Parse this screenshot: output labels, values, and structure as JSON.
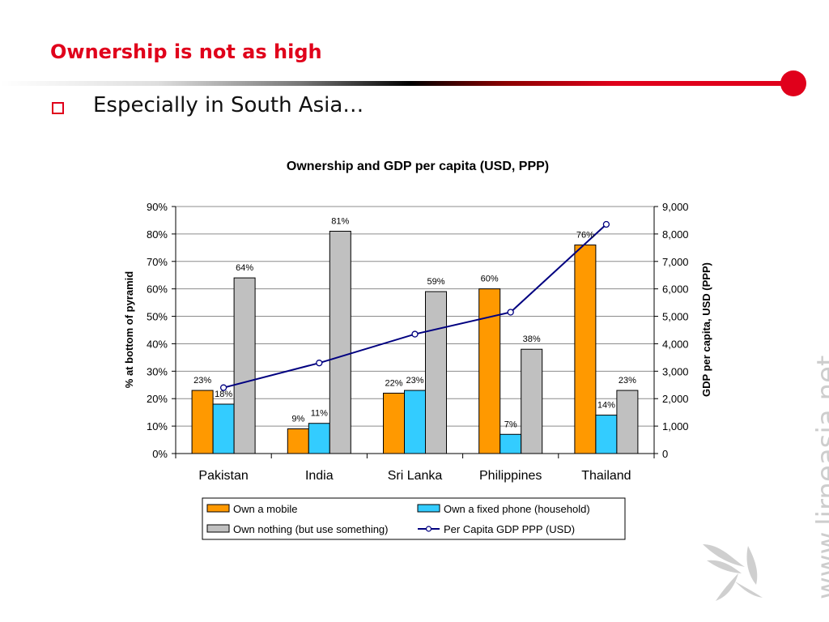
{
  "slide": {
    "title": "Ownership is not as high",
    "bullet": "Especially in South Asia…"
  },
  "watermark": "www.lirneasia.net",
  "colors": {
    "accent": "#e0001b",
    "mobile": "#ff9900",
    "fixed": "#33ccff",
    "nothing": "#c0c0c0",
    "gdp_line": "#000080"
  },
  "chart_data": {
    "type": "bar",
    "title": "Ownership and GDP per capita (USD, PPP)",
    "ylabel": "% at bottom of pyramid",
    "y2label": "GDP per capita, USD (PPP)",
    "ylim": [
      0,
      90
    ],
    "y2lim": [
      0,
      9000
    ],
    "yticks": [
      "0%",
      "10%",
      "20%",
      "30%",
      "40%",
      "50%",
      "60%",
      "70%",
      "80%",
      "90%"
    ],
    "y2ticks": [
      "0",
      "1,000",
      "2,000",
      "3,000",
      "4,000",
      "5,000",
      "6,000",
      "7,000",
      "8,000",
      "9,000"
    ],
    "grid": true,
    "categories": [
      "Pakistan",
      "India",
      "Sri Lanka",
      "Philippines",
      "Thailand"
    ],
    "series": [
      {
        "name": "Own a mobile",
        "kind": "bar",
        "color": "#ff9900",
        "values": [
          23,
          9,
          22,
          60,
          76
        ],
        "labels": [
          "23%",
          "9%",
          "22%",
          "60%",
          "76%"
        ]
      },
      {
        "name": "Own a fixed phone (household)",
        "kind": "bar",
        "color": "#33ccff",
        "values": [
          18,
          11,
          23,
          7,
          14
        ],
        "labels": [
          "18%",
          "11%",
          "23%",
          "7%",
          "14%"
        ]
      },
      {
        "name": "Own nothing (but use something)",
        "kind": "bar",
        "color": "#c0c0c0",
        "values": [
          64,
          81,
          59,
          38,
          23
        ],
        "labels": [
          "64%",
          "81%",
          "59%",
          "38%",
          "23%"
        ]
      },
      {
        "name": "Per Capita GDP PPP (USD)",
        "kind": "line",
        "axis": "right",
        "color": "#000080",
        "values": [
          2400,
          3300,
          4350,
          5150,
          8350
        ]
      }
    ],
    "legend_position": "bottom"
  }
}
